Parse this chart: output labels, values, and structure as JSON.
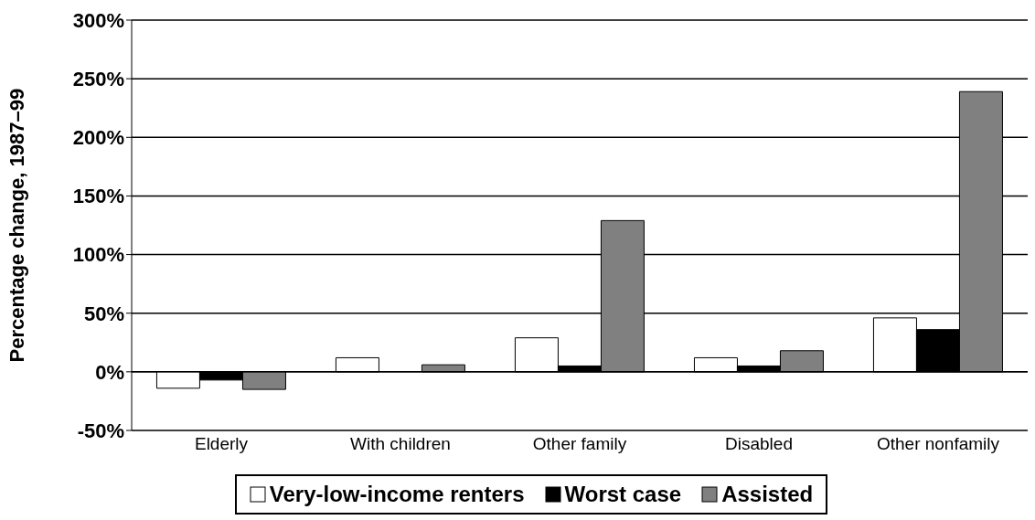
{
  "chart_data": {
    "type": "bar",
    "ylabel": "Percentage change, 1987–99",
    "categories": [
      "Elderly",
      "With children",
      "Other family",
      "Disabled",
      "Other nonfamily"
    ],
    "series": [
      {
        "name": "Very-low-income renters",
        "color": "#ffffff",
        "values": [
          -14,
          12,
          29,
          12,
          46
        ]
      },
      {
        "name": "Worst case",
        "color": "#000000",
        "values": [
          -7,
          0,
          5,
          5,
          36
        ]
      },
      {
        "name": "Assisted",
        "color": "#808080",
        "values": [
          -15,
          6,
          129,
          18,
          239
        ]
      }
    ],
    "ylim": [
      -50,
      300
    ],
    "yticks": [
      {
        "value": -50,
        "label": "-50%"
      },
      {
        "value": 0,
        "label": "0%"
      },
      {
        "value": 50,
        "label": "50%"
      },
      {
        "value": 100,
        "label": "100%"
      },
      {
        "value": 150,
        "label": "150%"
      },
      {
        "value": 200,
        "label": "200%"
      },
      {
        "value": 250,
        "label": "250%"
      },
      {
        "value": 300,
        "label": "300%"
      }
    ],
    "grid": "y",
    "legend": "bottom"
  }
}
